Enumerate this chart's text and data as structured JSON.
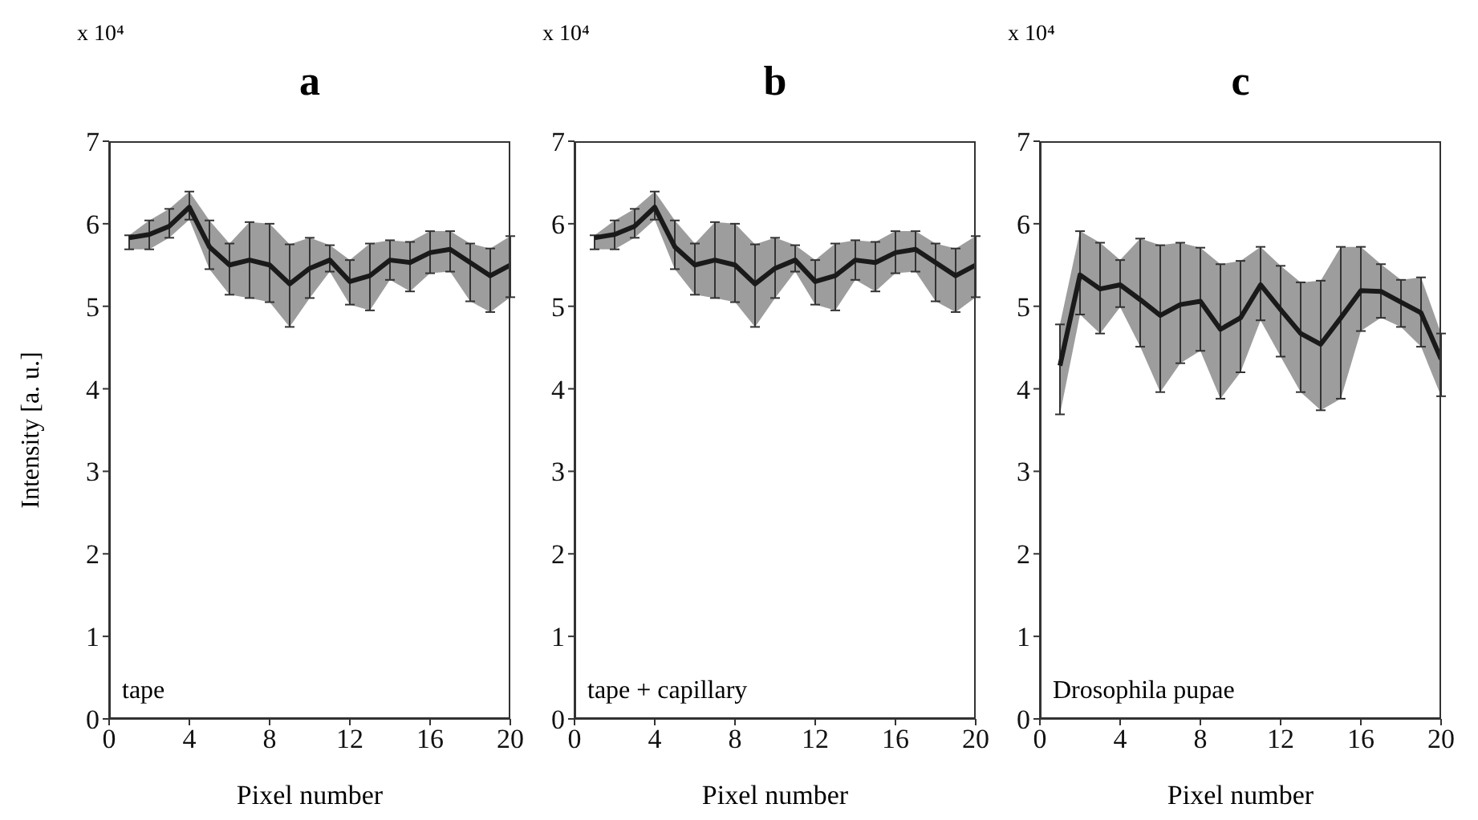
{
  "chart_data": [
    {
      "type": "line",
      "title": "a",
      "xlabel": "Pixel number",
      "ylabel": "Intensity [a. u.]",
      "annotations": [
        "x 10⁴",
        "tape"
      ],
      "x": [
        1,
        2,
        3,
        4,
        5,
        6,
        7,
        8,
        9,
        10,
        11,
        12,
        13,
        14,
        15,
        16,
        17,
        18,
        19,
        20
      ],
      "xlim": [
        0,
        20
      ],
      "xticks": [
        0,
        4,
        8,
        12,
        16,
        20
      ],
      "ylim": [
        0,
        7
      ],
      "yticks": [
        0,
        1,
        2,
        3,
        4,
        5,
        6,
        7
      ],
      "series": [
        {
          "color": "#1a1a1a",
          "values": [
            5.83,
            5.87,
            5.97,
            6.2,
            5.72,
            5.5,
            5.56,
            5.5,
            5.27,
            5.46,
            5.56,
            5.3,
            5.37,
            5.56,
            5.53,
            5.65,
            5.69,
            5.53,
            5.37,
            5.5
          ],
          "lower": [
            5.69,
            5.69,
            5.83,
            6.05,
            5.45,
            5.14,
            5.1,
            5.05,
            4.75,
            5.1,
            5.42,
            5.02,
            4.95,
            5.32,
            5.18,
            5.4,
            5.42,
            5.06,
            4.93,
            5.11
          ],
          "upper": [
            5.86,
            6.04,
            6.18,
            6.39,
            6.04,
            5.76,
            6.02,
            6.0,
            5.75,
            5.83,
            5.74,
            5.56,
            5.76,
            5.8,
            5.78,
            5.91,
            5.91,
            5.76,
            5.7,
            5.85
          ],
          "errors": [
            [
              5.69,
              5.86
            ],
            [
              5.69,
              6.04
            ],
            [
              5.83,
              6.18
            ],
            [
              6.05,
              6.39
            ],
            [
              5.45,
              6.04
            ],
            [
              5.14,
              5.76
            ],
            [
              5.1,
              6.02
            ],
            [
              5.05,
              6.0
            ],
            [
              4.75,
              5.75
            ],
            [
              5.1,
              5.83
            ],
            [
              5.42,
              5.74
            ],
            [
              5.02,
              5.56
            ],
            [
              4.95,
              5.76
            ],
            [
              5.32,
              5.8
            ],
            [
              5.18,
              5.78
            ],
            [
              5.4,
              5.91
            ],
            [
              5.42,
              5.91
            ],
            [
              5.06,
              5.76
            ],
            [
              4.93,
              5.7
            ],
            [
              5.11,
              5.85
            ]
          ]
        }
      ]
    },
    {
      "type": "line",
      "title": "b",
      "xlabel": "Pixel number",
      "annotations": [
        "x 10⁴",
        "tape + capillary"
      ],
      "x": [
        1,
        2,
        3,
        4,
        5,
        6,
        7,
        8,
        9,
        10,
        11,
        12,
        13,
        14,
        15,
        16,
        17,
        18,
        19,
        20
      ],
      "xlim": [
        0,
        20
      ],
      "xticks": [
        0,
        4,
        8,
        12,
        16,
        20
      ],
      "ylim": [
        0,
        7
      ],
      "yticks": [
        0,
        1,
        2,
        3,
        4,
        5,
        6,
        7
      ],
      "series": [
        {
          "color": "#1a1a1a",
          "values": [
            5.83,
            5.87,
            5.97,
            6.2,
            5.72,
            5.5,
            5.56,
            5.5,
            5.27,
            5.46,
            5.56,
            5.3,
            5.37,
            5.56,
            5.53,
            5.65,
            5.69,
            5.53,
            5.37,
            5.5
          ],
          "lower": [
            5.69,
            5.69,
            5.83,
            6.05,
            5.45,
            5.14,
            5.1,
            5.05,
            4.75,
            5.1,
            5.42,
            5.02,
            4.95,
            5.32,
            5.18,
            5.4,
            5.42,
            5.06,
            4.93,
            5.11
          ],
          "upper": [
            5.86,
            6.04,
            6.18,
            6.39,
            6.04,
            5.76,
            6.02,
            6.0,
            5.75,
            5.83,
            5.74,
            5.56,
            5.76,
            5.8,
            5.78,
            5.91,
            5.91,
            5.76,
            5.7,
            5.85
          ],
          "errors": [
            [
              5.69,
              5.86
            ],
            [
              5.69,
              6.04
            ],
            [
              5.83,
              6.18
            ],
            [
              6.05,
              6.39
            ],
            [
              5.45,
              6.04
            ],
            [
              5.14,
              5.76
            ],
            [
              5.1,
              6.02
            ],
            [
              5.05,
              6.0
            ],
            [
              4.75,
              5.75
            ],
            [
              5.1,
              5.83
            ],
            [
              5.42,
              5.74
            ],
            [
              5.02,
              5.56
            ],
            [
              4.95,
              5.76
            ],
            [
              5.32,
              5.8
            ],
            [
              5.18,
              5.78
            ],
            [
              5.4,
              5.91
            ],
            [
              5.42,
              5.91
            ],
            [
              5.06,
              5.76
            ],
            [
              4.93,
              5.7
            ],
            [
              5.11,
              5.85
            ]
          ]
        }
      ]
    },
    {
      "type": "line",
      "title": "c",
      "xlabel": "Pixel number",
      "annotations": [
        "x 10⁴",
        "Drosophila pupae"
      ],
      "x": [
        1,
        2,
        3,
        4,
        5,
        6,
        7,
        8,
        9,
        10,
        11,
        12,
        13,
        14,
        15,
        16,
        17,
        18,
        19,
        20
      ],
      "xlim": [
        0,
        20
      ],
      "xticks": [
        0,
        4,
        8,
        12,
        16,
        20
      ],
      "ylim": [
        0,
        7
      ],
      "yticks": [
        0,
        1,
        2,
        3,
        4,
        5,
        6,
        7
      ],
      "series": [
        {
          "color": "#1a1a1a",
          "values": [
            4.28,
            5.38,
            5.21,
            5.26,
            5.08,
            4.89,
            5.02,
            5.06,
            4.72,
            4.86,
            5.26,
            4.96,
            4.67,
            4.54,
            4.86,
            5.19,
            5.18,
            5.05,
            4.92,
            4.36
          ],
          "lower": [
            3.69,
            4.9,
            4.67,
            4.99,
            4.51,
            3.96,
            4.31,
            4.46,
            3.88,
            4.2,
            4.83,
            4.39,
            3.96,
            3.74,
            3.88,
            4.7,
            4.86,
            4.75,
            4.51,
            3.91
          ],
          "upper": [
            4.78,
            5.91,
            5.77,
            5.56,
            5.82,
            5.74,
            5.77,
            5.71,
            5.51,
            5.55,
            5.72,
            5.49,
            5.29,
            5.31,
            5.72,
            5.72,
            5.51,
            5.32,
            5.35,
            4.67
          ],
          "errors": [
            [
              3.69,
              4.78
            ],
            [
              4.9,
              5.91
            ],
            [
              4.67,
              5.77
            ],
            [
              4.99,
              5.56
            ],
            [
              4.51,
              5.82
            ],
            [
              3.96,
              5.74
            ],
            [
              4.31,
              5.77
            ],
            [
              4.46,
              5.71
            ],
            [
              3.88,
              5.51
            ],
            [
              4.2,
              5.55
            ],
            [
              4.83,
              5.72
            ],
            [
              4.39,
              5.49
            ],
            [
              3.96,
              5.29
            ],
            [
              3.74,
              5.31
            ],
            [
              3.88,
              5.72
            ],
            [
              4.7,
              5.72
            ],
            [
              4.86,
              5.51
            ],
            [
              4.75,
              5.32
            ],
            [
              4.51,
              5.35
            ],
            [
              3.91,
              4.67
            ]
          ]
        }
      ]
    }
  ]
}
